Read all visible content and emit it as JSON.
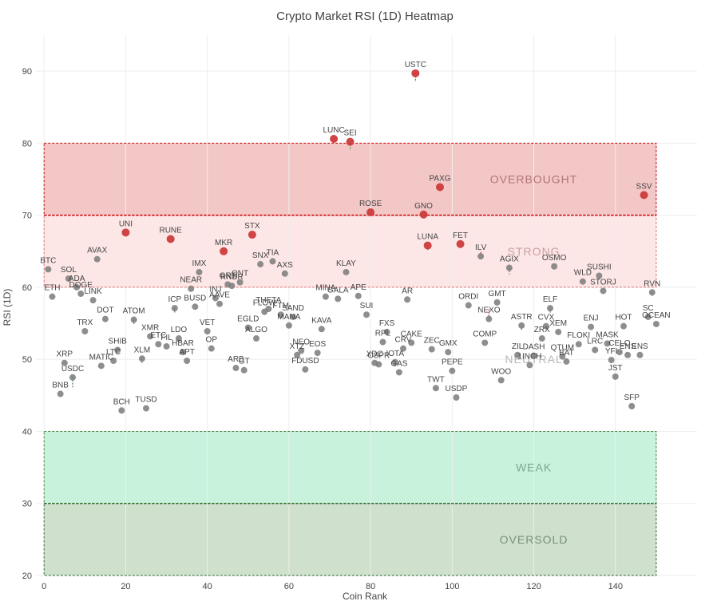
{
  "chart_data": {
    "type": "scatter",
    "title": "Crypto Market RSI (1D) Heatmap",
    "xlabel": "Coin Rank",
    "ylabel": "RSI (1D)",
    "xlim": [
      -2,
      160
    ],
    "ylim": [
      20,
      95
    ],
    "xticks": [
      0,
      20,
      40,
      60,
      80,
      100,
      120,
      140
    ],
    "yticks": [
      20,
      30,
      40,
      50,
      60,
      70,
      80,
      90
    ],
    "grid": true,
    "zones": [
      {
        "name": "OVERBOUGHT",
        "y0": 70,
        "y1": 80,
        "x0": 0,
        "x1": 150,
        "color": "#f4c7c7",
        "border": "#cc0000",
        "text_color": "#b07575",
        "label_x": 120,
        "label_y": 75
      },
      {
        "name": "STRONG",
        "y0": 60,
        "y1": 70,
        "x0": 0,
        "x1": 150,
        "color": "#fde6e6",
        "border": "#e07070",
        "text_color": "#c8a0a0",
        "label_x": 120,
        "label_y": 65
      },
      {
        "name": "NEUTRAL",
        "y0": 40,
        "y1": 60,
        "x0": 0,
        "x1": 150,
        "color": "#ffffff",
        "border": "#ffffff",
        "text_color": "#b8b8b8",
        "label_x": 120,
        "label_y": 50
      },
      {
        "name": "WEAK",
        "y0": 30,
        "y1": 40,
        "x0": 0,
        "x1": 150,
        "color": "#c8f2dc",
        "border": "#3a8a3a",
        "text_color": "#7aa88a",
        "label_x": 120,
        "label_y": 35
      },
      {
        "name": "OVERSOLD",
        "y0": 20,
        "y1": 30,
        "x0": 0,
        "x1": 150,
        "color": "#cfe0cc",
        "border": "#2a6a2a",
        "text_color": "#7a907a",
        "label_x": 120,
        "label_y": 25
      }
    ],
    "points": [
      {
        "name": "BTC",
        "x": 1,
        "y": 62.5,
        "prev": 62.5
      },
      {
        "name": "ETH",
        "x": 2,
        "y": 58.7,
        "prev": 58.7
      },
      {
        "name": "BNB",
        "x": 4,
        "y": 45.2,
        "prev": 45.2
      },
      {
        "name": "XRP",
        "x": 5,
        "y": 49.5,
        "prev": 49.5
      },
      {
        "name": "SOL",
        "x": 6,
        "y": 61.2,
        "prev": 61.2
      },
      {
        "name": "USDC",
        "x": 7,
        "y": 47.5,
        "prev": 46.0
      },
      {
        "name": "ADA",
        "x": 8,
        "y": 60.0,
        "prev": 60.0
      },
      {
        "name": "DOGE",
        "x": 9,
        "y": 59.1,
        "prev": 59.1
      },
      {
        "name": "TRX",
        "x": 10,
        "y": 53.9,
        "prev": 53.9
      },
      {
        "name": "LINK",
        "x": 12,
        "y": 58.2,
        "prev": 58.2
      },
      {
        "name": "AVAX",
        "x": 13,
        "y": 63.9,
        "prev": 63.9
      },
      {
        "name": "MATIC",
        "x": 14,
        "y": 49.1,
        "prev": 49.1
      },
      {
        "name": "DOT",
        "x": 15,
        "y": 55.6,
        "prev": 55.6
      },
      {
        "name": "LTC",
        "x": 17,
        "y": 49.8,
        "prev": 49.8
      },
      {
        "name": "SHIB",
        "x": 18,
        "y": 51.3,
        "prev": 51.3
      },
      {
        "name": "BCH",
        "x": 19,
        "y": 42.9,
        "prev": 42.9
      },
      {
        "name": "UNI",
        "x": 20,
        "y": 67.6,
        "prev": 67.6
      },
      {
        "name": "ATOM",
        "x": 22,
        "y": 55.5,
        "prev": 54.8
      },
      {
        "name": "XLM",
        "x": 24,
        "y": 50.1,
        "prev": 49.4
      },
      {
        "name": "TUSD",
        "x": 25,
        "y": 43.2,
        "prev": 43.2
      },
      {
        "name": "XMR",
        "x": 26,
        "y": 53.2,
        "prev": 53.2
      },
      {
        "name": "ETC",
        "x": 28,
        "y": 52.1,
        "prev": 52.1
      },
      {
        "name": "FIL",
        "x": 30,
        "y": 51.8,
        "prev": 51.8
      },
      {
        "name": "RUNE",
        "x": 31,
        "y": 66.7,
        "prev": 66.7
      },
      {
        "name": "ICP",
        "x": 32,
        "y": 57.1,
        "prev": 56.5
      },
      {
        "name": "LDO",
        "x": 33,
        "y": 52.9,
        "prev": 52.9
      },
      {
        "name": "HBAR",
        "x": 34,
        "y": 51.0,
        "prev": 51.0
      },
      {
        "name": "APT",
        "x": 35,
        "y": 49.8,
        "prev": 49.8
      },
      {
        "name": "NEAR",
        "x": 36,
        "y": 59.8,
        "prev": 59.8
      },
      {
        "name": "BUSD",
        "x": 37,
        "y": 57.3,
        "prev": 57.3
      },
      {
        "name": "IMX",
        "x": 38,
        "y": 62.1,
        "prev": 62.1
      },
      {
        "name": "VET",
        "x": 40,
        "y": 53.9,
        "prev": 53.9
      },
      {
        "name": "OP",
        "x": 41,
        "y": 51.5,
        "prev": 51.5
      },
      {
        "name": "INJ",
        "x": 42,
        "y": 58.5,
        "prev": 58.5
      },
      {
        "name": "AAVE",
        "x": 43,
        "y": 57.7,
        "prev": 57.7
      },
      {
        "name": "MKR",
        "x": 44,
        "y": 65.0,
        "prev": 65.0
      },
      {
        "name": "GRT",
        "x": 45,
        "y": 60.4,
        "prev": 60.4
      },
      {
        "name": "RNDR",
        "x": 46,
        "y": 60.2,
        "prev": 60.2
      },
      {
        "name": "ARB",
        "x": 47,
        "y": 48.8,
        "prev": 48.8
      },
      {
        "name": "QNT",
        "x": 48,
        "y": 60.7,
        "prev": 60.7
      },
      {
        "name": "GT",
        "x": 49,
        "y": 48.5,
        "prev": 48.5
      },
      {
        "name": "EGLD",
        "x": 50,
        "y": 54.4,
        "prev": 54.4
      },
      {
        "name": "STX",
        "x": 51,
        "y": 67.3,
        "prev": 67.3
      },
      {
        "name": "ALGO",
        "x": 52,
        "y": 52.9,
        "prev": 52.9
      },
      {
        "name": "SNX",
        "x": 53,
        "y": 63.2,
        "prev": 63.2
      },
      {
        "name": "FLOW",
        "x": 54,
        "y": 56.6,
        "prev": 56.6
      },
      {
        "name": "THETA",
        "x": 55,
        "y": 57.0,
        "prev": 57.0
      },
      {
        "name": "TIA",
        "x": 56,
        "y": 63.6,
        "prev": 63.6
      },
      {
        "name": "FTM",
        "x": 58,
        "y": 56.2,
        "prev": 56.2
      },
      {
        "name": "AXS",
        "x": 59,
        "y": 61.9,
        "prev": 61.9
      },
      {
        "name": "MANA",
        "x": 60,
        "y": 54.7,
        "prev": 54.7
      },
      {
        "name": "SAND",
        "x": 61,
        "y": 55.9,
        "prev": 55.9
      },
      {
        "name": "XTZ",
        "x": 62,
        "y": 50.6,
        "prev": 50.6
      },
      {
        "name": "NEO",
        "x": 63,
        "y": 51.2,
        "prev": 51.2
      },
      {
        "name": "FDUSD",
        "x": 64,
        "y": 48.6,
        "prev": 48.6
      },
      {
        "name": "EOS",
        "x": 67,
        "y": 50.9,
        "prev": 50.9
      },
      {
        "name": "KAVA",
        "x": 68,
        "y": 54.2,
        "prev": 54.2
      },
      {
        "name": "MINA",
        "x": 69,
        "y": 58.7,
        "prev": 58.7
      },
      {
        "name": "LUNC",
        "x": 71,
        "y": 80.6,
        "prev": 80.6
      },
      {
        "name": "GALA",
        "x": 72,
        "y": 58.4,
        "prev": 58.4
      },
      {
        "name": "KLAY",
        "x": 74,
        "y": 62.1,
        "prev": 62.1
      },
      {
        "name": "SEI",
        "x": 75,
        "y": 80.2,
        "prev": 79.0
      },
      {
        "name": "APE",
        "x": 77,
        "y": 58.8,
        "prev": 58.8
      },
      {
        "name": "SUI",
        "x": 79,
        "y": 56.2,
        "prev": 56.2
      },
      {
        "name": "ROSE",
        "x": 80,
        "y": 70.4,
        "prev": 70.4
      },
      {
        "name": "XDC",
        "x": 81,
        "y": 49.5,
        "prev": 49.5
      },
      {
        "name": "CSPR",
        "x": 82,
        "y": 49.3,
        "prev": 49.3
      },
      {
        "name": "RPL",
        "x": 83,
        "y": 52.4,
        "prev": 52.4
      },
      {
        "name": "FXS",
        "x": 84,
        "y": 53.8,
        "prev": 53.8
      },
      {
        "name": "IOTA",
        "x": 86,
        "y": 49.6,
        "prev": 49.0
      },
      {
        "name": "GAS",
        "x": 87,
        "y": 48.2,
        "prev": 48.2
      },
      {
        "name": "CRV",
        "x": 88,
        "y": 51.5,
        "prev": 51.5
      },
      {
        "name": "AR",
        "x": 89,
        "y": 58.3,
        "prev": 58.3
      },
      {
        "name": "CAKE",
        "x": 90,
        "y": 52.3,
        "prev": 52.3
      },
      {
        "name": "USTC",
        "x": 91,
        "y": 89.7,
        "prev": 88.5
      },
      {
        "name": "GNO",
        "x": 93,
        "y": 70.1,
        "prev": 70.1
      },
      {
        "name": "LUNA",
        "x": 94,
        "y": 65.8,
        "prev": 65.0
      },
      {
        "name": "ZEC",
        "x": 95,
        "y": 51.4,
        "prev": 51.4
      },
      {
        "name": "TWT",
        "x": 96,
        "y": 46.0,
        "prev": 46.0
      },
      {
        "name": "PAXG",
        "x": 97,
        "y": 73.9,
        "prev": 73.9
      },
      {
        "name": "GMX",
        "x": 99,
        "y": 51.0,
        "prev": 51.0
      },
      {
        "name": "PEPE",
        "x": 100,
        "y": 48.4,
        "prev": 48.4
      },
      {
        "name": "USDP",
        "x": 101,
        "y": 44.7,
        "prev": 44.7
      },
      {
        "name": "FET",
        "x": 102,
        "y": 66.0,
        "prev": 66.0
      },
      {
        "name": "ORDI",
        "x": 104,
        "y": 57.5,
        "prev": 57.5
      },
      {
        "name": "ILV",
        "x": 107,
        "y": 64.3,
        "prev": 65.0
      },
      {
        "name": "COMP",
        "x": 108,
        "y": 52.3,
        "prev": 52.3
      },
      {
        "name": "NEXO",
        "x": 109,
        "y": 55.6,
        "prev": 57.0
      },
      {
        "name": "GMT",
        "x": 111,
        "y": 57.9,
        "prev": 57.9
      },
      {
        "name": "WOO",
        "x": 112,
        "y": 47.1,
        "prev": 47.1
      },
      {
        "name": "AGIX",
        "x": 114,
        "y": 62.7,
        "prev": 61.8
      },
      {
        "name": "ZIL",
        "x": 116,
        "y": 50.6,
        "prev": 50.6
      },
      {
        "name": "ASTR",
        "x": 117,
        "y": 54.7,
        "prev": 54.0
      },
      {
        "name": "LINK2",
        "x": 119,
        "y": 49.2,
        "prev": 49.2,
        "label": "1INCH"
      },
      {
        "name": "DASH",
        "x": 120,
        "y": 50.5,
        "prev": 50.5
      },
      {
        "name": "ZRX",
        "x": 122,
        "y": 52.9,
        "prev": 52.9
      },
      {
        "name": "CVX",
        "x": 123,
        "y": 54.6,
        "prev": 54.6
      },
      {
        "name": "ELF",
        "x": 124,
        "y": 57.1,
        "prev": 56.4
      },
      {
        "name": "OSMO",
        "x": 125,
        "y": 62.9,
        "prev": 62.9
      },
      {
        "name": "XEM",
        "x": 126,
        "y": 53.8,
        "prev": 53.8
      },
      {
        "name": "QTUM",
        "x": 127,
        "y": 50.4,
        "prev": 50.4
      },
      {
        "name": "BAT",
        "x": 128,
        "y": 49.7,
        "prev": 49.7
      },
      {
        "name": "FLOKI",
        "x": 131,
        "y": 52.1,
        "prev": 52.1
      },
      {
        "name": "WLD",
        "x": 132,
        "y": 60.8,
        "prev": 60.8
      },
      {
        "name": "ENJ",
        "x": 134,
        "y": 54.5,
        "prev": 54.5
      },
      {
        "name": "LRC",
        "x": 135,
        "y": 51.3,
        "prev": 51.3
      },
      {
        "name": "SUSHI",
        "x": 136,
        "y": 61.6,
        "prev": 61.6
      },
      {
        "name": "STORJ",
        "x": 137,
        "y": 59.5,
        "prev": 59.5
      },
      {
        "name": "MASK",
        "x": 138,
        "y": 52.2,
        "prev": 52.2
      },
      {
        "name": "YFI",
        "x": 139,
        "y": 49.9,
        "prev": 49.9
      },
      {
        "name": "JST",
        "x": 140,
        "y": 47.6,
        "prev": 47.6
      },
      {
        "name": "CELO",
        "x": 141,
        "y": 51.0,
        "prev": 51.0
      },
      {
        "name": "HOT",
        "x": 142,
        "y": 54.6,
        "prev": 54.6
      },
      {
        "name": "ENS",
        "x": 143,
        "y": 50.6,
        "prev": 50.6
      },
      {
        "name": "SFP",
        "x": 144,
        "y": 43.5,
        "prev": 43.5
      },
      {
        "name": "ENS2",
        "x": 146,
        "y": 50.6,
        "prev": 50.6,
        "label": "ENS"
      },
      {
        "name": "SSV",
        "x": 147,
        "y": 72.8,
        "prev": 72.8
      },
      {
        "name": "SC",
        "x": 148,
        "y": 55.9,
        "prev": 55.9
      },
      {
        "name": "RVN",
        "x": 149,
        "y": 59.3,
        "prev": 58.8
      },
      {
        "name": "OCEAN",
        "x": 150,
        "y": 54.9,
        "prev": 54.9
      }
    ],
    "colors": {
      "point_neutral": "#7a7a7a",
      "point_hot": "#cc3b3b",
      "tail_up": "#4a8a4a",
      "tail_down": "#cc4444"
    }
  }
}
